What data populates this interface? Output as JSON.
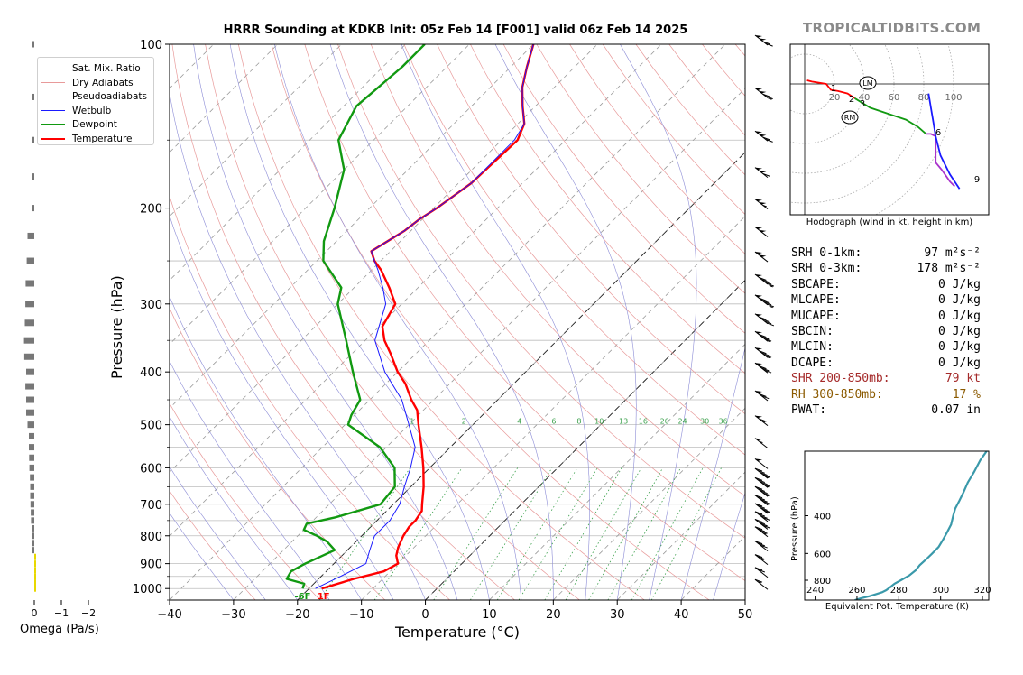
{
  "title": "HRRR Sounding at KDKB Init: 05z Feb 14 [F001] valid 06z Feb 14 2025",
  "brand": "TROPICALTIDBITS.COM",
  "chart_data": [
    {
      "type": "line",
      "kind": "skew-t",
      "xlabel": "Temperature (°C)",
      "ylabel": "Pressure (hPa)",
      "xlim": [
        -40,
        50
      ],
      "ylim": [
        1050,
        100
      ],
      "x_ticks": [
        -40,
        -30,
        -20,
        -10,
        0,
        10,
        20,
        30,
        40,
        50
      ],
      "x_tick_labels": [
        "−40",
        "−30",
        "−20",
        "−10",
        "0",
        "10",
        "20",
        "30",
        "40",
        "50"
      ],
      "y_ticks": [
        1000,
        900,
        800,
        700,
        600,
        500,
        400,
        300,
        200,
        100
      ],
      "y_scale": "log",
      "legend": {
        "placement": "upper-left",
        "entries": [
          {
            "label": "Sat. Mix. Ratio",
            "color": "#3aa04b",
            "style": "dotted"
          },
          {
            "label": "Dry Adiabats",
            "color": "#e89a9a",
            "style": "solid"
          },
          {
            "label": "Pseudoadiabats",
            "color": "#a6a6a6",
            "style": "solid"
          },
          {
            "label": "Wetbulb",
            "color": "#1a1aff",
            "style": "solid"
          },
          {
            "label": "Dewpoint",
            "color": "#119911",
            "style": "solid"
          },
          {
            "label": "Temperature",
            "color": "#ff0000",
            "style": "solid"
          }
        ]
      },
      "mixing_ratio_labels": [
        "1",
        "2",
        "4",
        "6",
        "8",
        "10",
        "13",
        "16",
        "20",
        "24",
        "30",
        "36"
      ],
      "mixing_ratio_values": [
        1,
        2,
        4,
        6,
        8,
        10,
        13,
        16,
        20,
        24,
        30,
        36
      ],
      "surface_labels": {
        "dewpoint": "-6F",
        "temperature": "1F"
      },
      "series": [
        {
          "name": "Temperature",
          "color": "#ff0000",
          "p": [
            1000,
            960,
            930,
            900,
            870,
            840,
            800,
            770,
            750,
            720,
            700,
            650,
            600,
            550,
            500,
            470,
            450,
            420,
            400,
            370,
            350,
            330,
            300,
            280,
            260,
            250,
            240,
            230,
            220,
            210,
            200,
            180,
            150,
            140,
            130,
            120,
            110,
            100
          ],
          "t": [
            -18,
            -14.5,
            -11,
            -10,
            -11.5,
            -12.5,
            -13.5,
            -14,
            -14,
            -14.5,
            -15.5,
            -18,
            -21,
            -24.5,
            -28.5,
            -31,
            -33.5,
            -37,
            -40,
            -44,
            -47,
            -49.5,
            -51,
            -54.5,
            -58.5,
            -61,
            -63,
            -62,
            -61,
            -60.5,
            -59.5,
            -58,
            -57.5,
            -59,
            -62,
            -65,
            -67.5,
            -70
          ]
        },
        {
          "name": "Dewpoint",
          "color": "#119911",
          "p": [
            1000,
            980,
            960,
            930,
            900,
            870,
            850,
            820,
            800,
            780,
            760,
            740,
            700,
            650,
            600,
            550,
            500,
            480,
            450,
            400,
            350,
            300,
            280,
            250,
            230,
            200,
            170,
            150,
            130,
            110,
            100
          ],
          "t": [
            -21,
            -21.5,
            -25,
            -25.5,
            -24.5,
            -23,
            -22,
            -24.5,
            -27,
            -30,
            -30.5,
            -27,
            -22,
            -22.5,
            -25.5,
            -31,
            -39.5,
            -40.5,
            -41.5,
            -47,
            -53,
            -60,
            -62,
            -69,
            -72,
            -75.5,
            -80,
            -85.5,
            -88,
            -87,
            -87
          ]
        },
        {
          "name": "Wetbulb",
          "color": "#1a1aff",
          "p": [
            1000,
            950,
            900,
            850,
            800,
            750,
            700,
            650,
            600,
            550,
            500,
            450,
            400,
            350,
            300,
            280,
            260,
            250,
            240,
            230,
            220,
            210,
            200,
            180,
            150,
            140,
            130,
            120,
            110,
            100
          ],
          "t": [
            -19,
            -17,
            -15,
            -16.5,
            -18,
            -18,
            -19,
            -21,
            -23,
            -25.5,
            -30,
            -35,
            -42,
            -48.5,
            -52.5,
            -55.5,
            -59,
            -61,
            -63,
            -62,
            -61,
            -60.5,
            -59.5,
            -58,
            -58,
            -59,
            -62,
            -65,
            -67.5,
            -70
          ]
        }
      ]
    },
    {
      "type": "bar",
      "kind": "omega-profile",
      "xlabel": "Omega (Pa/s)",
      "x_ticks": [
        0,
        -1,
        -2
      ],
      "x_tick_labels": [
        "0",
        "−1",
        "−2"
      ],
      "levels": [
        1000,
        975,
        950,
        925,
        900,
        875,
        850,
        825,
        800,
        775,
        750,
        725,
        700,
        675,
        650,
        625,
        600,
        575,
        550,
        525,
        500,
        475,
        450,
        425,
        400,
        375,
        350,
        325,
        300,
        275,
        250,
        225,
        200,
        175,
        150,
        125,
        100
      ],
      "values": [
        0.06,
        0.05,
        0.04,
        0.03,
        0.02,
        0.01,
        -0.01,
        -0.03,
        -0.08,
        -0.1,
        -0.12,
        -0.13,
        -0.14,
        -0.15,
        -0.15,
        -0.16,
        -0.18,
        -0.19,
        -0.2,
        -0.2,
        -0.25,
        -0.3,
        -0.3,
        -0.33,
        -0.3,
        -0.37,
        -0.38,
        -0.35,
        -0.33,
        -0.32,
        -0.28,
        -0.25,
        -0.05,
        -0.04,
        -0.03,
        -0.02,
        -0.03
      ]
    },
    {
      "type": "line",
      "kind": "hodograph",
      "caption": "Hodograph (wind in kt, height in km)",
      "ring_labels": [
        "20",
        "40",
        "60",
        "80",
        "100"
      ],
      "ring_values": [
        20,
        40,
        60,
        80,
        100
      ],
      "markers": [
        "LM",
        "RM"
      ],
      "height_labels": [
        "1",
        "2",
        "3",
        "6",
        "9"
      ],
      "segments": [
        {
          "color": "#ff0000",
          "u": [
            2,
            6,
            12,
            18,
            22,
            28,
            36,
            42
          ],
          "v": [
            3,
            2,
            1,
            0,
            -5,
            -6,
            -8,
            -12
          ]
        },
        {
          "color": "#119911",
          "u": [
            42,
            55,
            70,
            85,
            95,
            102
          ],
          "v": [
            -12,
            -20,
            -25,
            -30,
            -36,
            -42
          ]
        },
        {
          "color": "#aa33cc",
          "u": [
            102,
            106,
            110
          ],
          "v": [
            -42,
            -42,
            -44
          ]
        },
        {
          "color": "#1a1aff",
          "u": [
            110,
            108,
            106,
            104
          ],
          "v": [
            -44,
            -32,
            -20,
            -8
          ]
        },
        {
          "color": "#aa33cc",
          "u": [
            110,
            110,
            115,
            122,
            126
          ],
          "v": [
            -44,
            -66,
            -72,
            -82,
            -86
          ]
        },
        {
          "color": "#1a1aff",
          "u": [
            110,
            114,
            122,
            130
          ],
          "v": [
            -44,
            -60,
            -76,
            -88
          ]
        }
      ]
    },
    {
      "type": "line",
      "kind": "theta-e-profile",
      "xlabel": "Equivalent Pot. Temperature (K)",
      "ylabel": "Pressure (hPa)",
      "xlim": [
        235,
        323
      ],
      "x_ticks": [
        240,
        260,
        280,
        300,
        320
      ],
      "y_ticks": [
        400,
        600,
        800
      ],
      "ylim": [
        990,
        200
      ],
      "color": "#3a99aa",
      "p": [
        990,
        970,
        950,
        930,
        910,
        890,
        860,
        830,
        800,
        760,
        720,
        680,
        640,
        600,
        560,
        520,
        480,
        440,
        400,
        370,
        340,
        310,
        280,
        250,
        220,
        200
      ],
      "theta_e": [
        259,
        262,
        266,
        269,
        272,
        274,
        276,
        278,
        281,
        285,
        288,
        290,
        293,
        296,
        299,
        301,
        303,
        305,
        306,
        307,
        309,
        311,
        313,
        316,
        319,
        322
      ]
    }
  ],
  "stats": [
    {
      "label": "SRH 0-1km:",
      "value": "97",
      "unit": "m²s⁻²",
      "color": "#000000"
    },
    {
      "label": "SRH 0-3km:",
      "value": "178",
      "unit": "m²s⁻²",
      "color": "#000000"
    },
    {
      "label": "SBCAPE:",
      "value": "0 J/kg",
      "color": "#000000"
    },
    {
      "label": "MLCAPE:",
      "value": "0 J/kg",
      "color": "#000000"
    },
    {
      "label": "MUCAPE:",
      "value": "0 J/kg",
      "color": "#000000"
    },
    {
      "label": "SBCIN:",
      "value": "0 J/kg",
      "color": "#000000"
    },
    {
      "label": "MLCIN:",
      "value": "0 J/kg",
      "color": "#000000"
    },
    {
      "label": "DCAPE:",
      "value": "0 J/kg",
      "color": "#000000"
    },
    {
      "label": "SHR 200-850mb:",
      "value": "79 kt",
      "color": "#a52a2a"
    },
    {
      "label": "RH 300-850mb:",
      "value": "17 %",
      "color": "#8b5a00"
    },
    {
      "label": "PWAT:",
      "value": "0.07 in",
      "color": "#000000"
    }
  ],
  "wind_barbs": {
    "levels": [
      1000,
      950,
      900,
      850,
      800,
      775,
      750,
      725,
      700,
      675,
      650,
      625,
      600,
      550,
      500,
      450,
      400,
      375,
      350,
      325,
      300,
      275,
      250,
      225,
      200,
      175,
      150,
      125,
      100
    ],
    "speeds_kt": [
      15,
      20,
      25,
      30,
      35,
      40,
      40,
      45,
      45,
      45,
      45,
      45,
      50,
      55,
      65,
      70,
      80,
      85,
      85,
      90,
      95,
      95,
      100,
      100,
      105,
      110,
      120,
      125,
      120
    ]
  }
}
